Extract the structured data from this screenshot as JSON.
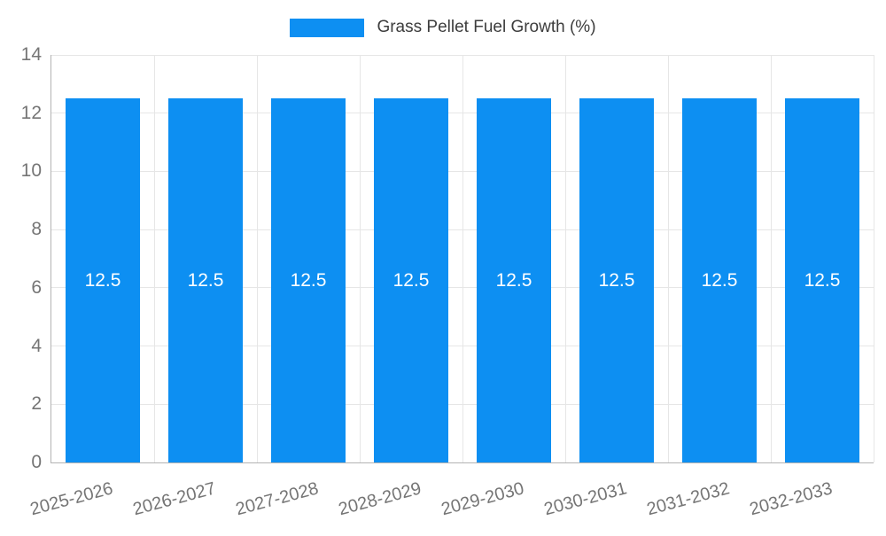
{
  "legend": {
    "label": "Grass Pellet Fuel Growth (%)"
  },
  "chart_data": {
    "type": "bar",
    "title": "",
    "categories": [
      "2025-2026",
      "2026-2027",
      "2027-2028",
      "2028-2029",
      "2029-2030",
      "2030-2031",
      "2031-2032",
      "2032-2033"
    ],
    "series": [
      {
        "name": "Grass Pellet Fuel Growth (%)",
        "values": [
          12.5,
          12.5,
          12.5,
          12.5,
          12.5,
          12.5,
          12.5,
          12.5
        ]
      }
    ],
    "bar_value_labels": [
      "12.5",
      "12.5",
      "12.5",
      "12.5",
      "12.5",
      "12.5",
      "12.5",
      "12.5"
    ],
    "xlabel": "",
    "ylabel": "",
    "ylim": [
      0,
      14
    ],
    "yticks": [
      0,
      2,
      4,
      6,
      8,
      10,
      12,
      14
    ],
    "grid": true,
    "legend_position": "top",
    "x_label_rotation_deg": -15,
    "bar_color": "#0d8ff2",
    "value_label_color": "#ffffff",
    "axis_tick_color": "#757575",
    "legend_text_color": "#3d3d3d",
    "grid_color": "#e6e6e6",
    "axis_line_color": "#b3b3b3"
  }
}
